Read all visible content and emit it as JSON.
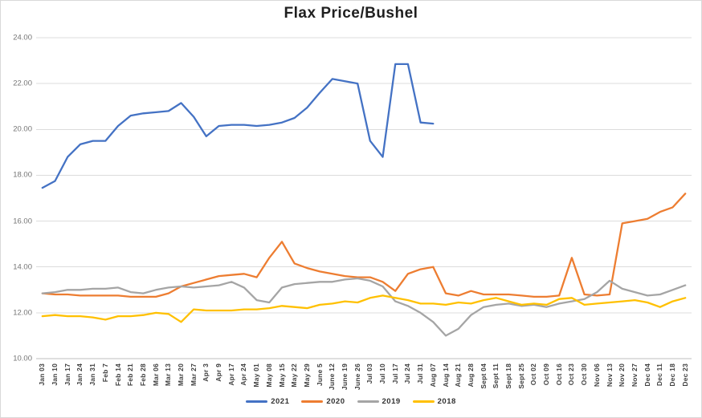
{
  "chart_data": {
    "type": "line",
    "title": "Flax Price/Bushel",
    "xlabel": "",
    "ylabel": "",
    "grid": true,
    "legend_position": "bottom",
    "gridline_color": "#DCDCDC",
    "axisline_color": "#BFBFBF",
    "y_axis": {
      "min": 10,
      "max": 24,
      "step": 2,
      "labels": [
        "24.00",
        "22.00",
        "20.00",
        "18.00",
        "16.00",
        "14.00",
        "12.00",
        "10.00"
      ]
    },
    "categories": [
      "Jan 03",
      "Jan 10",
      "Jan 17",
      "Jan 24",
      "Jan 31",
      "Feb 7",
      "Feb 14",
      "Feb 21",
      "Feb 28",
      "Mar 06",
      "Mar 13",
      "Mar 20",
      "Mar 27",
      "Apr 3",
      "Apr 9",
      "Apr 17",
      "Apr 24",
      "May 01",
      "May 08",
      "May 15",
      "May 22",
      "May 29",
      "June 5",
      "June 12",
      "June 19",
      "June 26",
      "Jul 03",
      "Jul 10",
      "Jul 17",
      "Jul 24",
      "Jul 31",
      "Aug 07",
      "Aug 14",
      "Aug 21",
      "Aug 28",
      "Sept 04",
      "Sept 11",
      "Sept 18",
      "Sept 25",
      "Oct 02",
      "Oct 09",
      "Oct 16",
      "Oct 23",
      "Oct 30",
      "Nov 06",
      "Nov 13",
      "Nov 20",
      "Nov 27",
      "Dec 04",
      "Dec 11",
      "Dec 18",
      "Dec 23"
    ],
    "series": [
      {
        "name": "2021",
        "color": "#4472C4",
        "values": [
          17.45,
          17.75,
          18.8,
          19.35,
          19.5,
          19.5,
          20.15,
          20.6,
          20.7,
          20.75,
          20.8,
          21.15,
          20.55,
          19.7,
          20.15,
          20.2,
          20.2,
          20.15,
          20.2,
          20.3,
          20.5,
          20.95,
          21.6,
          22.2,
          22.1,
          22.0,
          19.5,
          18.8,
          22.85,
          22.85,
          20.3,
          20.25,
          null,
          null,
          null,
          null,
          null,
          null,
          null,
          null,
          null,
          null,
          null,
          null,
          null,
          null,
          null,
          null,
          null,
          null,
          null,
          null
        ]
      },
      {
        "name": "2020",
        "color": "#ED7D31",
        "values": [
          12.85,
          12.8,
          12.8,
          12.75,
          12.75,
          12.75,
          12.75,
          12.7,
          12.7,
          12.7,
          12.85,
          13.15,
          13.3,
          13.45,
          13.6,
          13.65,
          13.7,
          13.55,
          14.4,
          15.1,
          14.15,
          13.95,
          13.8,
          13.7,
          13.6,
          13.55,
          13.55,
          13.35,
          12.95,
          13.7,
          13.9,
          14.0,
          12.85,
          12.75,
          12.95,
          12.8,
          12.8,
          12.8,
          12.75,
          12.7,
          12.7,
          12.75,
          14.4,
          12.8,
          12.75,
          12.8,
          15.9,
          16.0,
          16.1,
          16.4,
          16.6,
          17.2
        ]
      },
      {
        "name": "2019",
        "color": "#A5A5A5",
        "values": [
          12.85,
          12.9,
          13.0,
          13.0,
          13.05,
          13.05,
          13.1,
          12.9,
          12.85,
          13.0,
          13.1,
          13.15,
          13.1,
          13.15,
          13.2,
          13.35,
          13.1,
          12.55,
          12.45,
          13.1,
          13.25,
          13.3,
          13.35,
          13.35,
          13.45,
          13.5,
          13.4,
          13.15,
          12.5,
          12.3,
          12.0,
          11.6,
          11.0,
          11.3,
          11.9,
          12.25,
          12.35,
          12.4,
          12.3,
          12.35,
          12.25,
          12.4,
          12.5,
          12.6,
          12.9,
          13.4,
          13.05,
          12.9,
          12.75,
          12.8,
          13.0,
          13.2
        ]
      },
      {
        "name": "2018",
        "color": "#FFC000",
        "values": [
          11.85,
          11.9,
          11.85,
          11.85,
          11.8,
          11.7,
          11.85,
          11.85,
          11.9,
          12.0,
          11.95,
          11.6,
          12.15,
          12.1,
          12.1,
          12.1,
          12.15,
          12.15,
          12.2,
          12.3,
          12.25,
          12.2,
          12.35,
          12.4,
          12.5,
          12.45,
          12.65,
          12.75,
          12.65,
          12.55,
          12.4,
          12.4,
          12.35,
          12.45,
          12.4,
          12.55,
          12.65,
          12.5,
          12.35,
          12.4,
          12.35,
          12.6,
          12.65,
          12.35,
          12.4,
          12.45,
          12.5,
          12.55,
          12.45,
          12.25,
          12.5,
          12.65
        ]
      }
    ]
  }
}
